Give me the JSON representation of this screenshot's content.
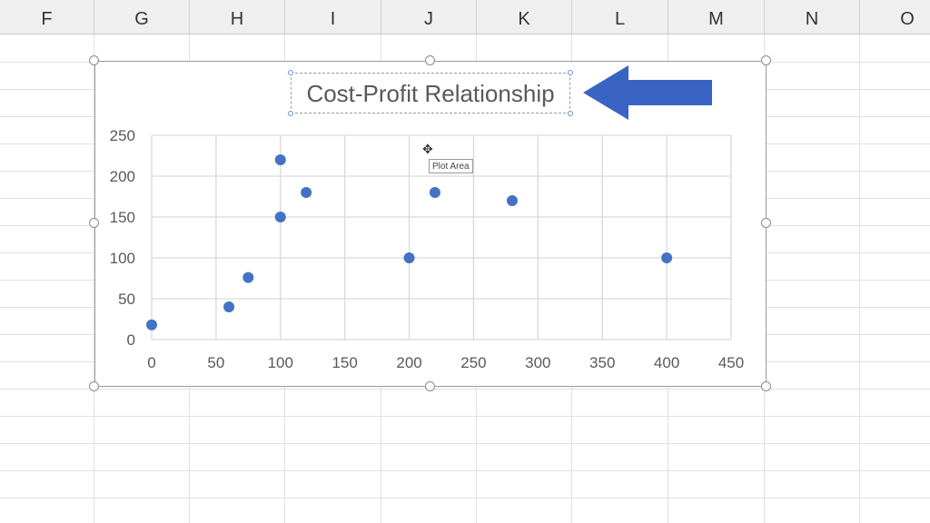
{
  "spreadsheet": {
    "columns": [
      "F",
      "G",
      "H",
      "I",
      "J",
      "K",
      "L",
      "M",
      "N",
      "O"
    ]
  },
  "chart": {
    "tooltip": "Plot Area",
    "accent_color": "#4472c4",
    "arrow_color": "#3a64c4"
  },
  "chart_data": {
    "type": "scatter",
    "title": "Cost-Profit Relationship",
    "xlabel": "",
    "ylabel": "",
    "xlim": [
      0,
      450
    ],
    "ylim": [
      0,
      250
    ],
    "xticks": [
      0,
      50,
      100,
      150,
      200,
      250,
      300,
      350,
      400,
      450
    ],
    "yticks": [
      0,
      50,
      100,
      150,
      200,
      250
    ],
    "grid": true,
    "legend": "none",
    "x": [
      0,
      60,
      75,
      100,
      100,
      120,
      200,
      220,
      280,
      400
    ],
    "y": [
      18,
      40,
      76,
      150,
      220,
      180,
      100,
      180,
      170,
      100
    ]
  }
}
